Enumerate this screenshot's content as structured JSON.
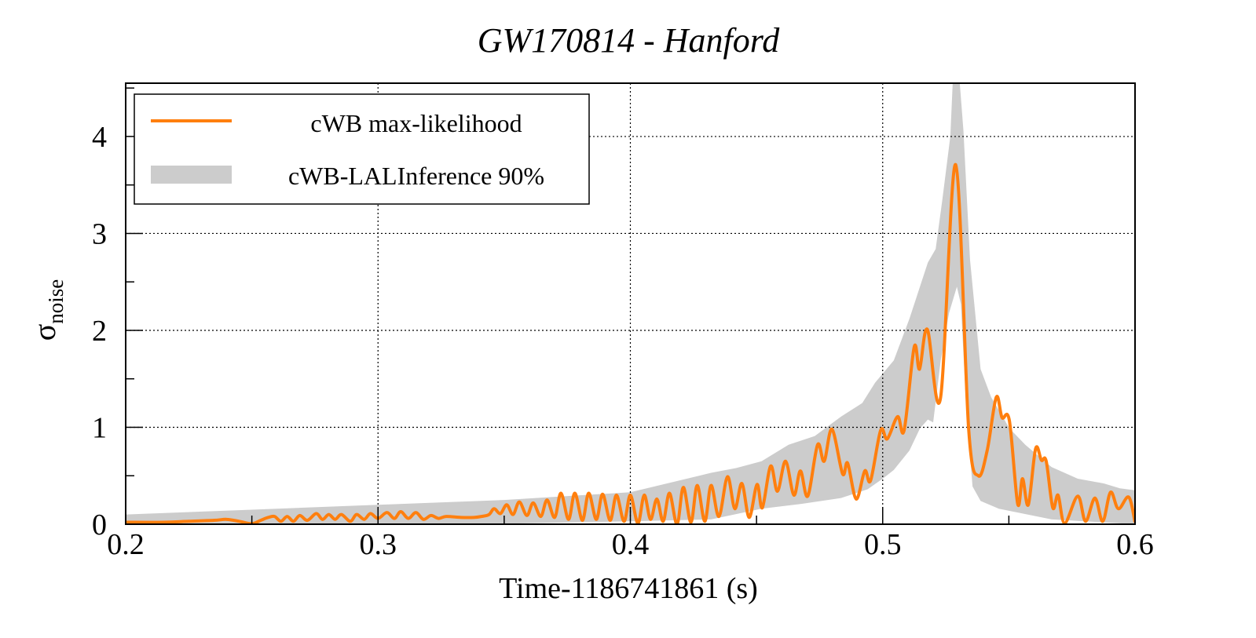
{
  "chart_data": {
    "type": "line",
    "title": "GW170814 - Hanford",
    "xlabel": "Time-1186741861 (s)",
    "ylabel": {
      "symbol": "σ",
      "subscript": "noise"
    },
    "xlim": [
      0.2,
      0.6
    ],
    "ylim": [
      0,
      4.55
    ],
    "xticks": [
      0.2,
      0.3,
      0.4,
      0.5,
      0.6
    ],
    "xtick_labels": [
      "0.2",
      "0.3",
      "0.4",
      "0.5",
      "0.6"
    ],
    "yticks": [
      0,
      1,
      2,
      3,
      4
    ],
    "ytick_labels": [
      "0",
      "1",
      "2",
      "3",
      "4"
    ],
    "grid": true,
    "legend": {
      "placement": "top-left",
      "entries": [
        "cWB max-likelihood",
        "cWB-LALInference 90%"
      ]
    },
    "colors": {
      "line": "#ff7f0e",
      "band": "#cccccc"
    },
    "series": [
      {
        "name": "cWB max-likelihood",
        "kind": "line",
        "points": [
          [
            0.2,
            0.02
          ],
          [
            0.215,
            0.02
          ],
          [
            0.225,
            0.03
          ],
          [
            0.235,
            0.04
          ],
          [
            0.24,
            0.05
          ],
          [
            0.245,
            0.03
          ],
          [
            0.25,
            0.005
          ],
          [
            0.2535,
            0.04
          ],
          [
            0.2565,
            0.07
          ],
          [
            0.259,
            0.08
          ],
          [
            0.2615,
            0.03
          ],
          [
            0.264,
            0.08
          ],
          [
            0.2665,
            0.03
          ],
          [
            0.269,
            0.09
          ],
          [
            0.272,
            0.04
          ],
          [
            0.2755,
            0.11
          ],
          [
            0.278,
            0.05
          ],
          [
            0.2805,
            0.1
          ],
          [
            0.283,
            0.05
          ],
          [
            0.2855,
            0.1
          ],
          [
            0.289,
            0.03
          ],
          [
            0.2915,
            0.1
          ],
          [
            0.2945,
            0.05
          ],
          [
            0.297,
            0.11
          ],
          [
            0.3,
            0.06
          ],
          [
            0.3035,
            0.12
          ],
          [
            0.3065,
            0.06
          ],
          [
            0.309,
            0.13
          ],
          [
            0.312,
            0.06
          ],
          [
            0.315,
            0.12
          ],
          [
            0.318,
            0.05
          ],
          [
            0.321,
            0.09
          ],
          [
            0.324,
            0.06
          ],
          [
            0.327,
            0.08
          ],
          [
            0.333,
            0.07
          ],
          [
            0.338,
            0.07
          ],
          [
            0.341,
            0.08
          ],
          [
            0.344,
            0.1
          ],
          [
            0.346,
            0.16
          ],
          [
            0.3485,
            0.11
          ],
          [
            0.351,
            0.2
          ],
          [
            0.3535,
            0.1
          ],
          [
            0.356,
            0.23
          ],
          [
            0.359,
            0.09
          ],
          [
            0.3615,
            0.22
          ],
          [
            0.3645,
            0.08
          ],
          [
            0.367,
            0.25
          ],
          [
            0.37,
            0.07
          ],
          [
            0.3725,
            0.32
          ],
          [
            0.3755,
            0.05
          ],
          [
            0.378,
            0.32
          ],
          [
            0.381,
            0.04
          ],
          [
            0.3835,
            0.32
          ],
          [
            0.3865,
            0.05
          ],
          [
            0.389,
            0.31
          ],
          [
            0.392,
            0.04
          ],
          [
            0.3945,
            0.3
          ],
          [
            0.3975,
            0.03
          ],
          [
            0.4,
            0.3
          ],
          [
            0.403,
            0.01
          ],
          [
            0.4055,
            0.3
          ],
          [
            0.408,
            0.05
          ],
          [
            0.4105,
            0.26
          ],
          [
            0.413,
            0.03
          ],
          [
            0.4155,
            0.32
          ],
          [
            0.4185,
            0.0
          ],
          [
            0.421,
            0.38
          ],
          [
            0.424,
            0.02
          ],
          [
            0.4265,
            0.4
          ],
          [
            0.4295,
            0.03
          ],
          [
            0.432,
            0.4
          ],
          [
            0.4351,
            0.08
          ],
          [
            0.4385,
            0.49
          ],
          [
            0.4414,
            0.16
          ],
          [
            0.4442,
            0.42
          ],
          [
            0.4471,
            0.07
          ],
          [
            0.4502,
            0.41
          ],
          [
            0.4523,
            0.17
          ],
          [
            0.4556,
            0.6
          ],
          [
            0.4583,
            0.34
          ],
          [
            0.4615,
            0.65
          ],
          [
            0.4648,
            0.3
          ],
          [
            0.4674,
            0.55
          ],
          [
            0.4703,
            0.29
          ],
          [
            0.4742,
            0.82
          ],
          [
            0.4768,
            0.65
          ],
          [
            0.4799,
            0.98
          ],
          [
            0.4841,
            0.52
          ],
          [
            0.4861,
            0.63
          ],
          [
            0.4895,
            0.26
          ],
          [
            0.4929,
            0.55
          ],
          [
            0.4952,
            0.45
          ],
          [
            0.4992,
            0.97
          ],
          [
            0.5018,
            0.88
          ],
          [
            0.5059,
            1.11
          ],
          [
            0.5085,
            0.97
          ],
          [
            0.5125,
            1.83
          ],
          [
            0.5146,
            1.6
          ],
          [
            0.5177,
            2.01
          ],
          [
            0.5229,
            1.3
          ],
          [
            0.5289,
            3.71
          ],
          [
            0.5341,
            0.97
          ],
          [
            0.5379,
            0.5
          ],
          [
            0.5414,
            0.76
          ],
          [
            0.545,
            1.31
          ],
          [
            0.5473,
            1.1
          ],
          [
            0.5502,
            1.07
          ],
          [
            0.5535,
            0.21
          ],
          [
            0.5554,
            0.47
          ],
          [
            0.5577,
            0.2
          ],
          [
            0.5606,
            0.78
          ],
          [
            0.5629,
            0.66
          ],
          [
            0.5648,
            0.65
          ],
          [
            0.5674,
            0.17
          ],
          [
            0.5695,
            0.3
          ],
          [
            0.5721,
            0.01
          ],
          [
            0.5773,
            0.29
          ],
          [
            0.5804,
            0.03
          ],
          [
            0.5841,
            0.27
          ],
          [
            0.5872,
            0.03
          ],
          [
            0.5903,
            0.33
          ],
          [
            0.5934,
            0.16
          ],
          [
            0.5975,
            0.28
          ],
          [
            0.6,
            0.02
          ]
        ]
      },
      {
        "name": "cWB-LALInference 90%",
        "kind": "band",
        "upper": [
          [
            0.2,
            0.1
          ],
          [
            0.25,
            0.15
          ],
          [
            0.3,
            0.2
          ],
          [
            0.35,
            0.25
          ],
          [
            0.4,
            0.33
          ],
          [
            0.432,
            0.53
          ],
          [
            0.442,
            0.58
          ],
          [
            0.452,
            0.65
          ],
          [
            0.4627,
            0.82
          ],
          [
            0.4731,
            0.91
          ],
          [
            0.4835,
            1.11
          ],
          [
            0.4919,
            1.25
          ],
          [
            0.497,
            1.46
          ],
          [
            0.5044,
            1.69
          ],
          [
            0.5106,
            2.12
          ],
          [
            0.5179,
            2.7
          ],
          [
            0.521,
            2.84
          ],
          [
            0.5236,
            3.34
          ],
          [
            0.5268,
            4.0
          ],
          [
            0.528,
            4.7
          ],
          [
            0.5301,
            4.7
          ],
          [
            0.532,
            4.06
          ],
          [
            0.5346,
            2.73
          ],
          [
            0.5388,
            1.6
          ],
          [
            0.543,
            1.31
          ],
          [
            0.5502,
            0.99
          ],
          [
            0.5565,
            0.82
          ],
          [
            0.5669,
            0.59
          ],
          [
            0.5773,
            0.47
          ],
          [
            0.5877,
            0.42
          ],
          [
            0.594,
            0.37
          ],
          [
            0.6,
            0.35
          ]
        ],
        "lower": [
          [
            0.2,
            0.0
          ],
          [
            0.34,
            0.0
          ],
          [
            0.4,
            0.03
          ],
          [
            0.432,
            0.05
          ],
          [
            0.452,
            0.16
          ],
          [
            0.468,
            0.21
          ],
          [
            0.4835,
            0.27
          ],
          [
            0.494,
            0.36
          ],
          [
            0.5,
            0.47
          ],
          [
            0.5044,
            0.56
          ],
          [
            0.5106,
            0.76
          ],
          [
            0.5148,
            0.99
          ],
          [
            0.5179,
            1.08
          ],
          [
            0.52,
            1.05
          ],
          [
            0.523,
            1.69
          ],
          [
            0.5263,
            2.18
          ],
          [
            0.5294,
            2.45
          ],
          [
            0.531,
            2.27
          ],
          [
            0.533,
            1.25
          ],
          [
            0.5356,
            0.39
          ],
          [
            0.5388,
            0.24
          ],
          [
            0.546,
            0.16
          ],
          [
            0.567,
            0.05
          ],
          [
            0.6,
            0.0
          ]
        ]
      }
    ]
  }
}
